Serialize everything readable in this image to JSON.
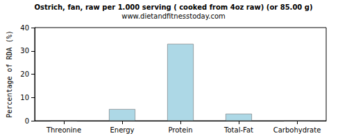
{
  "chart_data": {
    "type": "bar",
    "title": "Ostrich, fan, raw per 1.000 serving ( cooked from 4oz raw) (or 85.00 g)",
    "subtitle": "www.dietandfitnesstoday.com",
    "y_label": "Percentage of RDA (%)",
    "categories": [
      "Threonine",
      "Energy",
      "Protein",
      "Total-Fat",
      "Carbohydrate"
    ],
    "values": [
      0,
      5,
      33,
      3,
      0
    ],
    "color": "#add8e6",
    "ylim": [
      0,
      40
    ],
    "yticks": [
      0,
      10,
      20,
      30,
      40
    ],
    "grid": false
  }
}
